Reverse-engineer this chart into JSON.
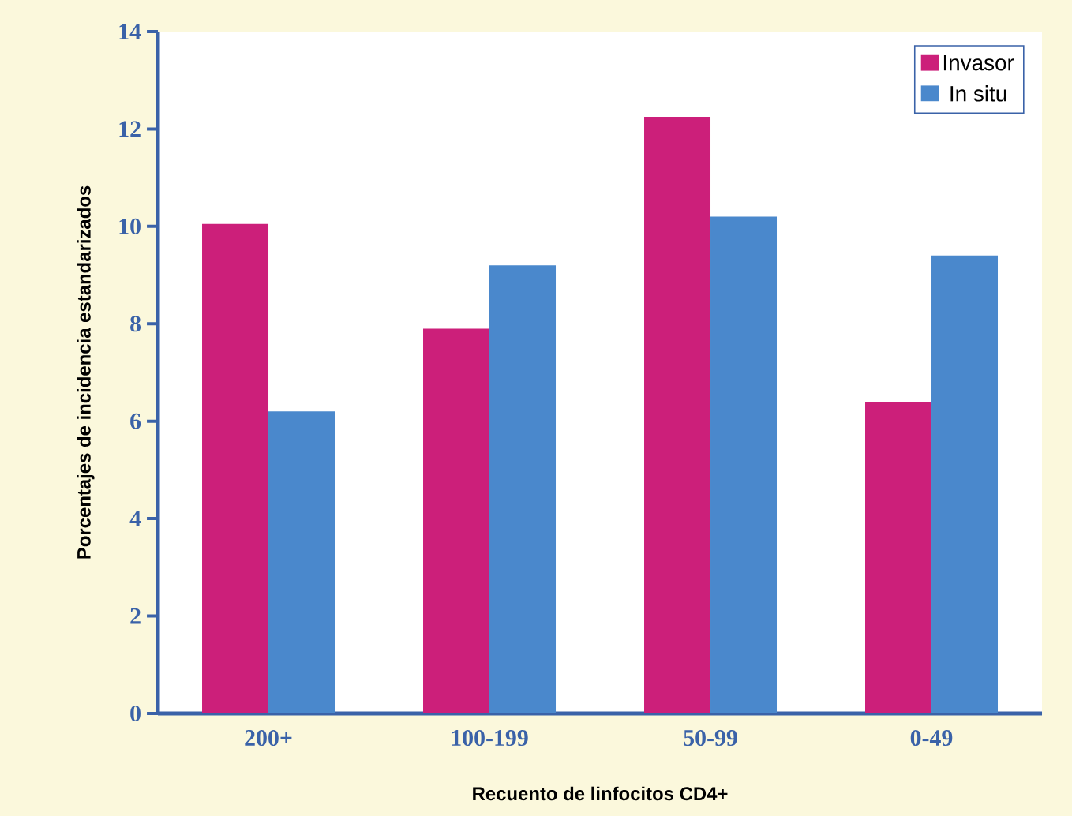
{
  "chart_data": {
    "type": "bar",
    "xlabel": "Recuento de linfocitos CD4+",
    "ylabel": "Porcentajes de incidencia estandarizados",
    "categories": [
      "200+",
      "100-199",
      "50-99",
      "0-49"
    ],
    "series": [
      {
        "name": "Invasor",
        "color": "#cc1f7a",
        "values": [
          10.05,
          7.9,
          12.25,
          6.4
        ]
      },
      {
        "name": "In situ",
        "color": "#4a88cc",
        "values": [
          6.2,
          9.2,
          10.2,
          9.4
        ]
      }
    ],
    "ylim": [
      0,
      14
    ],
    "yticks": [
      0,
      2,
      4,
      6,
      8,
      10,
      12,
      14
    ],
    "legend": "top right",
    "grid": false
  }
}
